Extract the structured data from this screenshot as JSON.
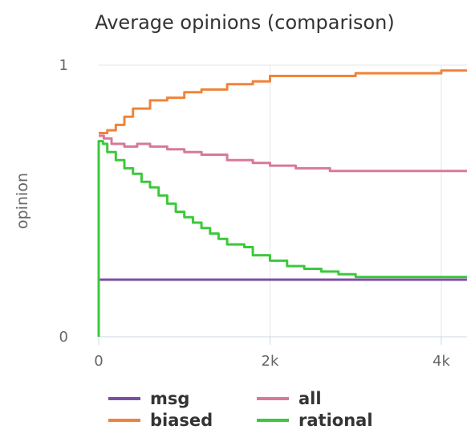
{
  "chart_data": {
    "type": "line",
    "title": "Average opinions (comparison)",
    "xlabel": "",
    "ylabel": "opinion",
    "xlim": [
      0,
      4300
    ],
    "ylim": [
      0,
      1
    ],
    "x_ticks": [
      {
        "value": 0,
        "label": "0"
      },
      {
        "value": 2000,
        "label": "2k"
      },
      {
        "value": 4000,
        "label": "4k"
      }
    ],
    "y_ticks": [
      {
        "value": 0,
        "label": "0"
      },
      {
        "value": 1,
        "label": "1"
      }
    ],
    "grid": {
      "x": true,
      "y": true
    },
    "legend_position": "bottom",
    "series": [
      {
        "name": "msg",
        "color": "#7b4fa3",
        "points": [
          [
            0,
            0.21
          ],
          [
            4300,
            0.21
          ]
        ]
      },
      {
        "name": "all",
        "color": "#d9789b",
        "points": [
          [
            0,
            0.74
          ],
          [
            60,
            0.73
          ],
          [
            150,
            0.71
          ],
          [
            300,
            0.7
          ],
          [
            450,
            0.71
          ],
          [
            600,
            0.7
          ],
          [
            800,
            0.69
          ],
          [
            1000,
            0.68
          ],
          [
            1200,
            0.67
          ],
          [
            1500,
            0.65
          ],
          [
            1800,
            0.64
          ],
          [
            2000,
            0.63
          ],
          [
            2300,
            0.62
          ],
          [
            2700,
            0.61
          ],
          [
            3000,
            0.61
          ],
          [
            3500,
            0.61
          ],
          [
            4000,
            0.61
          ],
          [
            4300,
            0.61
          ]
        ]
      },
      {
        "name": "biased",
        "color": "#f0833a",
        "points": [
          [
            0,
            0.75
          ],
          [
            100,
            0.76
          ],
          [
            200,
            0.78
          ],
          [
            300,
            0.81
          ],
          [
            400,
            0.84
          ],
          [
            600,
            0.87
          ],
          [
            800,
            0.88
          ],
          [
            1000,
            0.9
          ],
          [
            1200,
            0.91
          ],
          [
            1500,
            0.93
          ],
          [
            1800,
            0.94
          ],
          [
            2000,
            0.96
          ],
          [
            2500,
            0.96
          ],
          [
            3000,
            0.97
          ],
          [
            3500,
            0.97
          ],
          [
            4000,
            0.98
          ],
          [
            4300,
            0.98
          ]
        ]
      },
      {
        "name": "rational",
        "color": "#3cc93c",
        "points": [
          [
            0,
            0.0
          ],
          [
            0,
            0.72
          ],
          [
            50,
            0.71
          ],
          [
            100,
            0.68
          ],
          [
            200,
            0.65
          ],
          [
            300,
            0.62
          ],
          [
            400,
            0.6
          ],
          [
            500,
            0.57
          ],
          [
            600,
            0.55
          ],
          [
            700,
            0.52
          ],
          [
            800,
            0.49
          ],
          [
            900,
            0.46
          ],
          [
            1000,
            0.44
          ],
          [
            1100,
            0.42
          ],
          [
            1200,
            0.4
          ],
          [
            1300,
            0.38
          ],
          [
            1400,
            0.36
          ],
          [
            1500,
            0.34
          ],
          [
            1700,
            0.33
          ],
          [
            1800,
            0.3
          ],
          [
            2000,
            0.28
          ],
          [
            2200,
            0.26
          ],
          [
            2400,
            0.25
          ],
          [
            2600,
            0.24
          ],
          [
            2800,
            0.23
          ],
          [
            3000,
            0.22
          ],
          [
            3500,
            0.22
          ],
          [
            4000,
            0.22
          ],
          [
            4300,
            0.22
          ]
        ]
      }
    ]
  }
}
